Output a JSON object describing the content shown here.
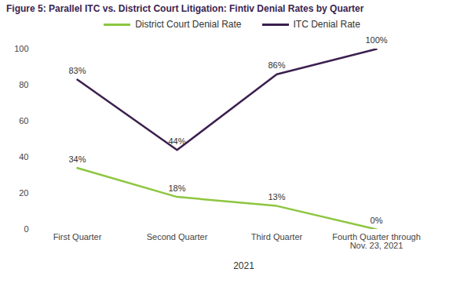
{
  "chart_data": {
    "type": "line",
    "title": "Figure 5: Parallel ITC vs. District Court Litigation: Fintiv Denial Rates by Quarter",
    "xlabel": "2021",
    "categories": [
      "First Quarter",
      "Second Quarter",
      "Third Quarter",
      "Fourth Quarter through Nov. 23, 2021"
    ],
    "series": [
      {
        "name": "District Court Denial Rate",
        "color": "#8dc63f",
        "values": [
          34,
          18,
          13,
          0
        ],
        "value_labels": [
          "34%",
          "18%",
          "13%",
          "0%"
        ]
      },
      {
        "name": "ITC Denial Rate",
        "color": "#3b1f4f",
        "values": [
          83,
          44,
          86,
          100
        ],
        "value_labels": [
          "83%",
          "44%",
          "86%",
          "100%"
        ]
      }
    ],
    "ylim": [
      0,
      100
    ],
    "yticks": [
      0,
      20,
      40,
      60,
      80,
      100
    ],
    "grid": false,
    "data_labels": true,
    "legend": "top"
  }
}
